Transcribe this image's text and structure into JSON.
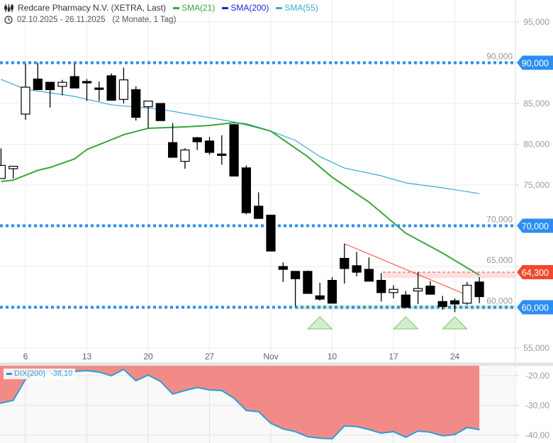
{
  "header": {
    "title": "Redcare Pharmacy N.V. (XETRA, Last)",
    "legend": [
      {
        "label": "SMA(21)",
        "color": "#3aa53a"
      },
      {
        "label": "SMA(200)",
        "color": "#2020e0"
      },
      {
        "label": "SMA(55)",
        "color": "#3aa9d6"
      }
    ],
    "range": "02.10.2025 - 26.11.2025",
    "duration": "(2 Monate, 1 Tag)"
  },
  "chart_data": [
    {
      "type": "candlestick",
      "title": "Redcare Pharmacy N.V. (XETRA, Last)",
      "ylim": [
        53000,
        97000
      ],
      "y_ticks": [
        "95,000",
        "90,000",
        "85,000",
        "80,000",
        "75,000",
        "70,000",
        "65,000",
        "60,000",
        "55,000"
      ],
      "y_tick_values": [
        95000,
        90000,
        85000,
        80000,
        75000,
        70000,
        65000,
        60000,
        55000
      ],
      "x_ticks": [
        {
          "label": "6",
          "i": 2
        },
        {
          "label": "13",
          "i": 7
        },
        {
          "label": "20",
          "i": 12
        },
        {
          "label": "27",
          "i": 17
        },
        {
          "label": "Nov",
          "i": 22
        },
        {
          "label": "10",
          "i": 27
        },
        {
          "label": "17",
          "i": 32
        },
        {
          "label": "24",
          "i": 37
        }
      ],
      "ohlc": [
        [
          75800,
          79500,
          75800,
          77400
        ],
        [
          77000,
          77300,
          75800,
          77300
        ],
        [
          83700,
          89900,
          83000,
          87000
        ],
        [
          88000,
          90000,
          86700,
          86700
        ],
        [
          87600,
          87600,
          84500,
          86700
        ],
        [
          87100,
          87900,
          86000,
          87600
        ],
        [
          88300,
          89900,
          86900,
          86900
        ],
        [
          87700,
          88000,
          85300,
          87600
        ],
        [
          86900,
          87700,
          85300,
          86800
        ],
        [
          88400,
          88700,
          85400,
          85400
        ],
        [
          85500,
          89400,
          85000,
          87900
        ],
        [
          86700,
          87100,
          82900,
          83300
        ],
        [
          84600,
          85300,
          82000,
          85300
        ],
        [
          85000,
          85000,
          82900,
          82900
        ],
        [
          80200,
          82600,
          78400,
          78400
        ],
        [
          77900,
          79500,
          77000,
          79300
        ],
        [
          80800,
          80900,
          79300,
          80300
        ],
        [
          80400,
          80900,
          78700,
          79000
        ],
        [
          78800,
          81100,
          77500,
          78700
        ],
        [
          82400,
          82500,
          76100,
          76100
        ],
        [
          77100,
          77400,
          71400,
          71600
        ],
        [
          72400,
          74100,
          70900,
          70900
        ],
        [
          71300,
          71300,
          66900,
          66900
        ],
        [
          65000,
          65500,
          63100,
          64650
        ],
        [
          64400,
          64400,
          60100,
          63500
        ],
        [
          64400,
          64500,
          61700,
          61700
        ],
        [
          61400,
          63000,
          60800,
          61000
        ],
        [
          63300,
          63700,
          60500,
          60500
        ],
        [
          66000,
          67800,
          62900,
          64750
        ],
        [
          65100,
          66800,
          63800,
          64300
        ],
        [
          64650,
          66100,
          63200,
          63200
        ],
        [
          63300,
          64200,
          60700,
          61800
        ],
        [
          61800,
          62700,
          61100,
          62200
        ],
        [
          61500,
          62000,
          59900,
          60000
        ],
        [
          62000,
          64300,
          60400,
          62300
        ],
        [
          62600,
          63200,
          61600,
          61600
        ],
        [
          60700,
          61400,
          59700,
          60100
        ],
        [
          60800,
          61100,
          59400,
          60400
        ],
        [
          60500,
          63100,
          60300,
          62700
        ],
        [
          63100,
          63700,
          60500,
          61300
        ]
      ],
      "sma21": [
        [
          0,
          75430
        ],
        [
          1,
          75600
        ],
        [
          3,
          76800
        ],
        [
          4,
          77150
        ],
        [
          6,
          78200
        ],
        [
          7,
          79350
        ],
        [
          10,
          81170
        ],
        [
          12,
          81960
        ],
        [
          15,
          82130
        ],
        [
          17,
          82300
        ],
        [
          19,
          82650
        ],
        [
          20,
          82480
        ],
        [
          22,
          81600
        ],
        [
          25,
          78480
        ],
        [
          27,
          75950
        ],
        [
          30,
          72900
        ],
        [
          33,
          69090
        ],
        [
          36,
          66650
        ],
        [
          39,
          63950
        ]
      ],
      "sma55": [
        [
          0,
          87960
        ],
        [
          2,
          86740
        ],
        [
          6,
          85870
        ],
        [
          9,
          84830
        ],
        [
          13,
          84300
        ],
        [
          16,
          83520
        ],
        [
          19,
          82740
        ],
        [
          22,
          81600
        ],
        [
          24,
          80480
        ],
        [
          26,
          78480
        ],
        [
          28,
          77080
        ],
        [
          31,
          76130
        ],
        [
          33,
          75260
        ],
        [
          36,
          74650
        ],
        [
          39,
          73950
        ]
      ],
      "levels": [
        {
          "value": 90000,
          "label": "90,000",
          "color": "#2b8ef0"
        },
        {
          "value": 70000,
          "label": "70,000",
          "color": "#2b8ef0"
        },
        {
          "value": 60000,
          "label": "60,000",
          "color": "#2b8ef0"
        },
        {
          "value": 64300,
          "label": "64,300",
          "color": "#f04a2a"
        }
      ],
      "trendline": [
        [
          28,
          67800
        ],
        [
          38,
          61500
        ]
      ],
      "markers_up": [
        26,
        33,
        37
      ]
    },
    {
      "type": "area",
      "legend": "DIX(200)",
      "last_value": "-38,10",
      "ylim": [
        -42,
        -16.7
      ],
      "y_ticks": [
        "-20,00",
        "-30,00",
        "-40,00"
      ],
      "y_tick_values": [
        -20,
        -30,
        -40
      ],
      "values": [
        -29.3,
        -28.3,
        -21.2,
        -19.3,
        -18.6,
        -18.3,
        -18.6,
        -18.3,
        -18.8,
        -20.0,
        -17.9,
        -21.7,
        -19.8,
        -21.9,
        -26.2,
        -25.0,
        -24.0,
        -24.8,
        -25.0,
        -27.6,
        -31.7,
        -32.1,
        -36.0,
        -37.9,
        -38.8,
        -40.5,
        -41.0,
        -41.2,
        -36.9,
        -37.1,
        -38.1,
        -39.3,
        -38.8,
        -40.7,
        -38.6,
        -39.0,
        -40.2,
        -39.8,
        -37.4,
        -38.1
      ]
    }
  ]
}
